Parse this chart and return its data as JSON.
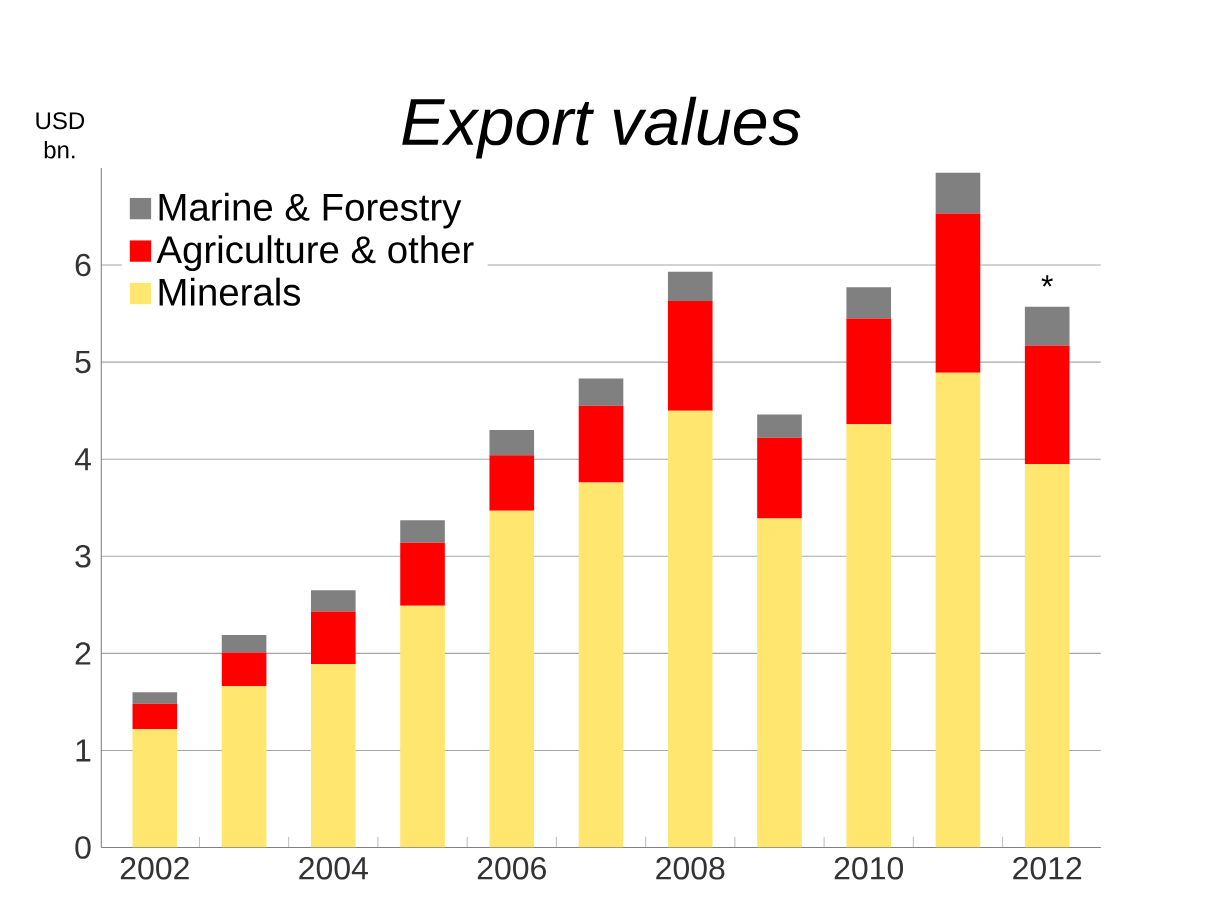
{
  "chart_data": {
    "type": "bar",
    "title": "Export values",
    "ylabel": "USD bn.",
    "stacked": true,
    "categories": [
      "2002",
      null,
      "2004",
      null,
      "2006",
      null,
      "2008",
      null,
      "2010",
      null,
      "2012"
    ],
    "series": [
      {
        "name": "Minerals",
        "color": "#ffe66e",
        "values": [
          1.22,
          1.66,
          1.89,
          2.49,
          3.47,
          3.76,
          4.5,
          3.39,
          4.36,
          4.89,
          3.95
        ]
      },
      {
        "name": "Agriculture & other",
        "color": "#ff0000",
        "values": [
          0.26,
          0.35,
          0.54,
          0.65,
          0.57,
          0.79,
          1.13,
          0.83,
          1.09,
          1.64,
          1.22
        ]
      },
      {
        "name": "Marine & Forestry",
        "color": "#808080",
        "values": [
          0.12,
          0.18,
          0.22,
          0.23,
          0.26,
          0.28,
          0.3,
          0.24,
          0.32,
          0.42,
          0.4
        ]
      }
    ],
    "ylim": [
      0,
      7
    ],
    "yticks": [
      0,
      1,
      2,
      3,
      4,
      5,
      6
    ],
    "grid": "y",
    "legend": "top left",
    "annotations": [
      {
        "text": "*",
        "x": "2012",
        "y": 5.57
      }
    ]
  }
}
